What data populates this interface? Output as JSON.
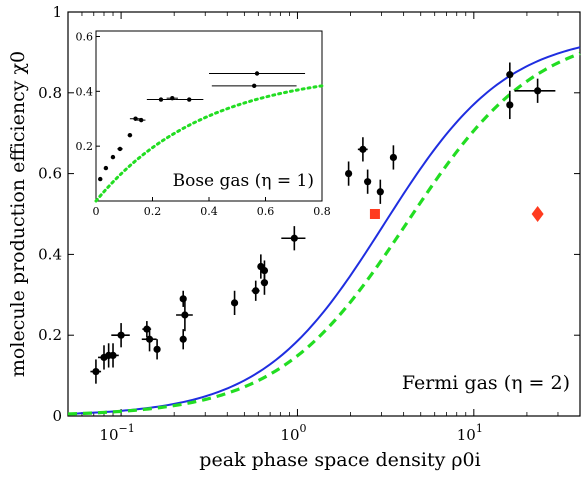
{
  "chart_data": [
    {
      "type": "scatter",
      "title": "",
      "xlabel": "peak phase space density ρ0i",
      "ylabel": "molecule production efficiency χ0",
      "xscale": "log",
      "xlim": [
        0.05,
        40
      ],
      "ylim": [
        0,
        1
      ],
      "x_ticks": [
        0.1,
        1,
        10
      ],
      "x_tick_labels": [
        "10−1",
        "100",
        "101"
      ],
      "y_ticks": [
        0,
        0.2,
        0.4,
        0.6,
        0.8,
        1
      ],
      "y_tick_labels": [
        "0",
        "0.2",
        "0.4",
        "0.6",
        "0.8",
        "1"
      ],
      "annotation": "Fermi gas (η = 2)",
      "colors": {
        "theory_solid": "#1f2ee0",
        "theory_dashed": "#22dd22",
        "special": "#ff3b1f",
        "data": "#000000"
      },
      "series": [
        {
          "kind": "points_with_errorbars",
          "points": [
            {
              "x": 0.072,
              "y": 0.11,
              "xerr": 0.005,
              "yerr": 0.03
            },
            {
              "x": 0.08,
              "y": 0.145,
              "xerr": 0.006,
              "yerr": 0.03
            },
            {
              "x": 0.085,
              "y": 0.15,
              "xerr": 0.006,
              "yerr": 0.03
            },
            {
              "x": 0.09,
              "y": 0.15,
              "xerr": 0.007,
              "yerr": 0.03
            },
            {
              "x": 0.1,
              "y": 0.2,
              "xerr": 0.012,
              "yerr": 0.03
            },
            {
              "x": 0.14,
              "y": 0.215,
              "xerr": 0.008,
              "yerr": 0.02
            },
            {
              "x": 0.145,
              "y": 0.19,
              "xerr": 0.014,
              "yerr": 0.03
            },
            {
              "x": 0.16,
              "y": 0.165,
              "xerr": 0.006,
              "yerr": 0.025
            },
            {
              "x": 0.225,
              "y": 0.29,
              "xerr": 0.005,
              "yerr": 0.02
            },
            {
              "x": 0.225,
              "y": 0.19,
              "xerr": 0.005,
              "yerr": 0.025
            },
            {
              "x": 0.23,
              "y": 0.25,
              "xerr": 0.025,
              "yerr": 0.04
            },
            {
              "x": 0.44,
              "y": 0.28,
              "xerr": 0.01,
              "yerr": 0.03
            },
            {
              "x": 0.58,
              "y": 0.31,
              "xerr": 0.03,
              "yerr": 0.025
            },
            {
              "x": 0.62,
              "y": 0.37,
              "xerr": 0.02,
              "yerr": 0.03
            },
            {
              "x": 0.65,
              "y": 0.33,
              "xerr": 0.03,
              "yerr": 0.03
            },
            {
              "x": 0.65,
              "y": 0.36,
              "xerr": 0.02,
              "yerr": 0.025
            },
            {
              "x": 0.96,
              "y": 0.44,
              "xerr": 0.15,
              "yerr": 0.03
            },
            {
              "x": 1.95,
              "y": 0.6,
              "xerr": 0.05,
              "yerr": 0.03
            },
            {
              "x": 2.35,
              "y": 0.66,
              "xerr": 0.15,
              "yerr": 0.03
            },
            {
              "x": 2.5,
              "y": 0.58,
              "xerr": 0.1,
              "yerr": 0.03
            },
            {
              "x": 2.95,
              "y": 0.555,
              "xerr": 0.05,
              "yerr": 0.03
            },
            {
              "x": 3.5,
              "y": 0.64,
              "xerr": 0.08,
              "yerr": 0.03
            },
            {
              "x": 16,
              "y": 0.845,
              "xerr": 0.6,
              "yerr": 0.03
            },
            {
              "x": 16,
              "y": 0.77,
              "xerr": 0.5,
              "yerr": 0.035
            },
            {
              "x": 23,
              "y": 0.805,
              "xerr": 6,
              "yerr": 0.03
            }
          ]
        },
        {
          "kind": "square_marker",
          "x": 2.75,
          "y": 0.5
        },
        {
          "kind": "diamond_marker",
          "x": 23,
          "y": 0.5
        },
        {
          "kind": "solid_curve",
          "model": "logistic_log10",
          "ymax": 0.95,
          "x0": 3.1,
          "k": 1.25
        },
        {
          "kind": "dashed_curve",
          "model": "logistic_log10",
          "ymax": 0.96,
          "x0": 4.2,
          "k": 1.18
        }
      ]
    },
    {
      "type": "scatter",
      "title": "",
      "xlabel": "",
      "ylabel": "",
      "xscale": "linear",
      "xlim": [
        0,
        0.8
      ],
      "ylim": [
        0,
        0.62
      ],
      "x_ticks": [
        0,
        0.2,
        0.4,
        0.6,
        0.8
      ],
      "x_tick_labels": [
        "0",
        "0.2",
        "0.4",
        "0.6",
        "0.8"
      ],
      "y_ticks": [
        0.2,
        0.4,
        0.6
      ],
      "y_tick_labels": [
        "0.2",
        "0.4",
        "0.6"
      ],
      "annotation": "Bose gas (η = 1)",
      "series": [
        {
          "kind": "points_with_errorbars",
          "points": [
            {
              "x": 0.015,
              "y": 0.08,
              "xerr": 0.0,
              "yerr": 0.0
            },
            {
              "x": 0.035,
              "y": 0.12,
              "xerr": 0.0,
              "yerr": 0.0
            },
            {
              "x": 0.06,
              "y": 0.16,
              "xerr": 0.005,
              "yerr": 0.0
            },
            {
              "x": 0.085,
              "y": 0.19,
              "xerr": 0.01,
              "yerr": 0.0
            },
            {
              "x": 0.12,
              "y": 0.24,
              "xerr": 0.008,
              "yerr": 0.0
            },
            {
              "x": 0.14,
              "y": 0.3,
              "xerr": 0.02,
              "yerr": 0.0
            },
            {
              "x": 0.16,
              "y": 0.295,
              "xerr": 0.015,
              "yerr": 0.0
            },
            {
              "x": 0.23,
              "y": 0.37,
              "xerr": 0.05,
              "yerr": 0.0
            },
            {
              "x": 0.27,
              "y": 0.375,
              "xerr": 0.02,
              "yerr": 0.0
            },
            {
              "x": 0.33,
              "y": 0.37,
              "xerr": 0.05,
              "yerr": 0.0
            },
            {
              "x": 0.57,
              "y": 0.465,
              "xerr": 0.17,
              "yerr": 0.0
            },
            {
              "x": 0.56,
              "y": 0.42,
              "xerr": 0.15,
              "yerr": 0.0
            }
          ]
        },
        {
          "kind": "dotted_curve",
          "model": "sqrt_saturating",
          "a": 0.48,
          "b": 2.6
        }
      ]
    }
  ]
}
